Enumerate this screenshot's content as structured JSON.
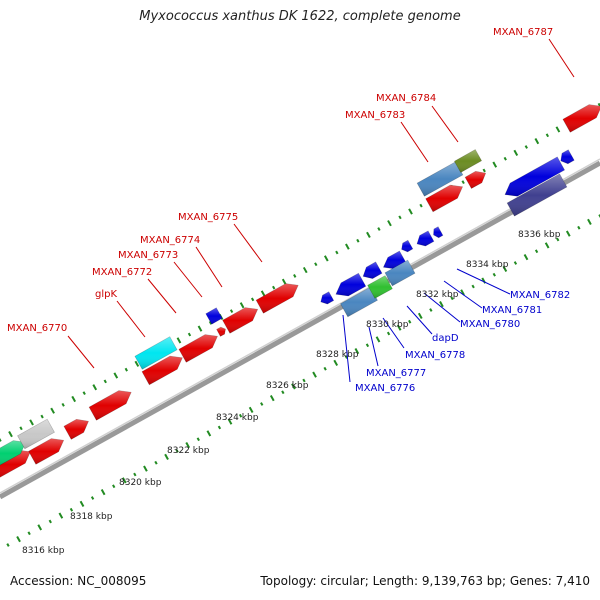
{
  "title": "Myxococcus xanthus DK 1622, complete genome",
  "footer": {
    "accession": "Accession: NC_008095",
    "summary": "Topology: circular; Length: 9,139,763 bp; Genes: 7,410"
  },
  "colors": {
    "forward_label": "#cc0000",
    "reverse_label": "#0000cc",
    "tick": "#228b22",
    "backbone": "#999999"
  },
  "kbp_ticks": [
    {
      "label": "8316 kbp"
    },
    {
      "label": "8318 kbp"
    },
    {
      "label": "8320 kbp"
    },
    {
      "label": "8322 kbp"
    },
    {
      "label": "8324 kbp"
    },
    {
      "label": "8326 kbp"
    },
    {
      "label": "8328 kbp"
    },
    {
      "label": "8330 kbp"
    },
    {
      "label": "8332 kbp"
    },
    {
      "label": "8334 kbp"
    },
    {
      "label": "8336 kbp"
    }
  ],
  "forward_labels": [
    {
      "text": "MXAN_6770"
    },
    {
      "text": "glpK"
    },
    {
      "text": "MXAN_6772"
    },
    {
      "text": "MXAN_6773"
    },
    {
      "text": "MXAN_6774"
    },
    {
      "text": "MXAN_6775"
    },
    {
      "text": "MXAN_6783"
    },
    {
      "text": "MXAN_6784"
    },
    {
      "text": "MXAN_6787"
    }
  ],
  "reverse_labels": [
    {
      "text": "MXAN_6776"
    },
    {
      "text": "MXAN_6777"
    },
    {
      "text": "MXAN_6778"
    },
    {
      "text": "dapD"
    },
    {
      "text": "MXAN_6780"
    },
    {
      "text": "MXAN_6781"
    },
    {
      "text": "MXAN_6782"
    }
  ]
}
